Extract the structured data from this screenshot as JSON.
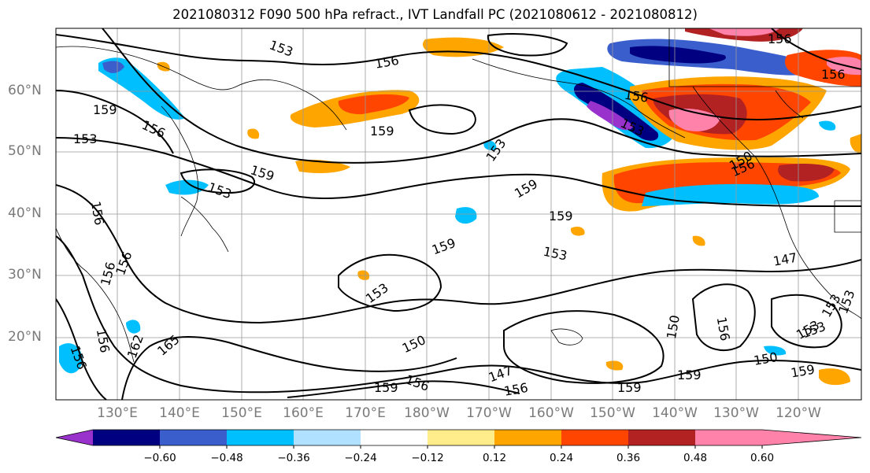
{
  "title": "2021080312 F090 500 hPa refract., IVT Landfall PC (2021080612 - 2021080812)",
  "lat_labels": [
    "60°N",
    "50°N",
    "40°N",
    "30°N",
    "20°N"
  ],
  "lon_labels": [
    "130°E",
    "140°E",
    "150°E",
    "160°E",
    "170°E",
    "180°W",
    "170°W",
    "160°W",
    "150°W",
    "140°W",
    "130°W",
    "120°W"
  ],
  "contour_labels": [
    "153",
    "156",
    "156",
    "159",
    "153",
    "156",
    "159",
    "153",
    "159",
    "156",
    "153",
    "159",
    "156",
    "153",
    "159",
    "156",
    "159",
    "153",
    "156",
    "153",
    "147",
    "153",
    "150",
    "156",
    "162",
    "165",
    "150",
    "147",
    "156",
    "156",
    "159",
    "153",
    "156",
    "159",
    "150",
    "153",
    "159",
    "156",
    "159",
    "150",
    "156",
    "156",
    "153"
  ],
  "colorbar": {
    "colors": [
      "#9932cc",
      "#000080",
      "#3a5fcd",
      "#00bfff",
      "#b0e2ff",
      "#ffffff",
      "#ffec8b",
      "#ffa500",
      "#ff4500",
      "#b22222",
      "#ff82ab"
    ],
    "tick_labels": [
      "−0.60",
      "−0.48",
      "−0.36",
      "−0.24",
      "−0.12",
      "0.12",
      "0.24",
      "0.36",
      "0.48",
      "0.60"
    ]
  }
}
